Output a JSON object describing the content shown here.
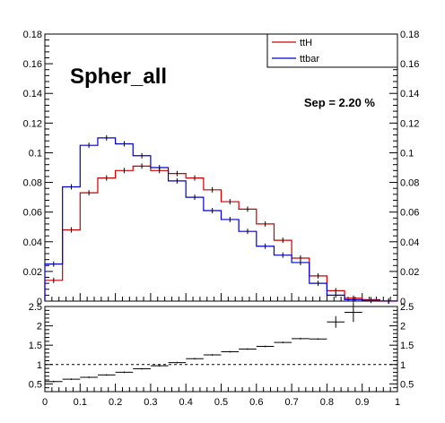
{
  "chart_data": [
    {
      "type": "histogram",
      "title": "Spher_all",
      "annotation": "Sep = 2.20 %",
      "xlim": [
        0,
        1
      ],
      "ylim": [
        0,
        0.18
      ],
      "x_ticks": [
        "0",
        "0.1",
        "0.2",
        "0.3",
        "0.4",
        "0.5",
        "0.6",
        "0.7",
        "0.8",
        "0.9",
        "1"
      ],
      "y_ticks": [
        "0",
        "0.02",
        "0.04",
        "0.06",
        "0.08",
        "0.1",
        "0.12",
        "0.14",
        "0.16",
        "0.18"
      ],
      "legend_position": "top-right",
      "bin_edges": [
        0,
        0.05,
        0.1,
        0.15,
        0.2,
        0.25,
        0.3,
        0.35,
        0.4,
        0.45,
        0.5,
        0.55,
        0.6,
        0.65,
        0.7,
        0.75,
        0.8,
        0.85,
        0.9,
        0.95,
        1.0
      ],
      "series": [
        {
          "name": "ttH",
          "color": "#cc0000",
          "values": [
            0.014,
            0.048,
            0.073,
            0.083,
            0.088,
            0.091,
            0.088,
            0.086,
            0.083,
            0.075,
            0.067,
            0.062,
            0.052,
            0.041,
            0.029,
            0.017,
            0.007,
            0.002,
            0.001,
            0.0
          ]
        },
        {
          "name": "ttbar",
          "color": "#0000cc",
          "values": [
            0.025,
            0.077,
            0.105,
            0.11,
            0.106,
            0.098,
            0.09,
            0.081,
            0.07,
            0.061,
            0.055,
            0.047,
            0.037,
            0.031,
            0.026,
            0.012,
            0.004,
            0.001,
            0.0005,
            0.0001
          ]
        }
      ]
    },
    {
      "type": "ratio",
      "xlim": [
        0,
        1
      ],
      "ylim": [
        0.3,
        2.5
      ],
      "reference_line": 1,
      "x_ticks": [
        "0",
        "0.1",
        "0.2",
        "0.3",
        "0.4",
        "0.5",
        "0.6",
        "0.7",
        "0.8",
        "0.9",
        "1"
      ],
      "y_ticks": [
        "0.5",
        "1",
        "1.5",
        "2",
        "2.5"
      ],
      "points": [
        {
          "x": 0.025,
          "y": 0.56
        },
        {
          "x": 0.075,
          "y": 0.62
        },
        {
          "x": 0.125,
          "y": 0.67
        },
        {
          "x": 0.175,
          "y": 0.73
        },
        {
          "x": 0.225,
          "y": 0.8
        },
        {
          "x": 0.275,
          "y": 0.89
        },
        {
          "x": 0.325,
          "y": 0.97
        },
        {
          "x": 0.375,
          "y": 1.05
        },
        {
          "x": 0.425,
          "y": 1.15
        },
        {
          "x": 0.475,
          "y": 1.25
        },
        {
          "x": 0.525,
          "y": 1.33
        },
        {
          "x": 0.575,
          "y": 1.4
        },
        {
          "x": 0.625,
          "y": 1.47
        },
        {
          "x": 0.675,
          "y": 1.57
        },
        {
          "x": 0.725,
          "y": 1.67
        },
        {
          "x": 0.775,
          "y": 1.66
        },
        {
          "x": 0.825,
          "y": 2.1,
          "err": 0.15
        },
        {
          "x": 0.875,
          "y": 2.35,
          "err": 0.25
        }
      ]
    }
  ]
}
